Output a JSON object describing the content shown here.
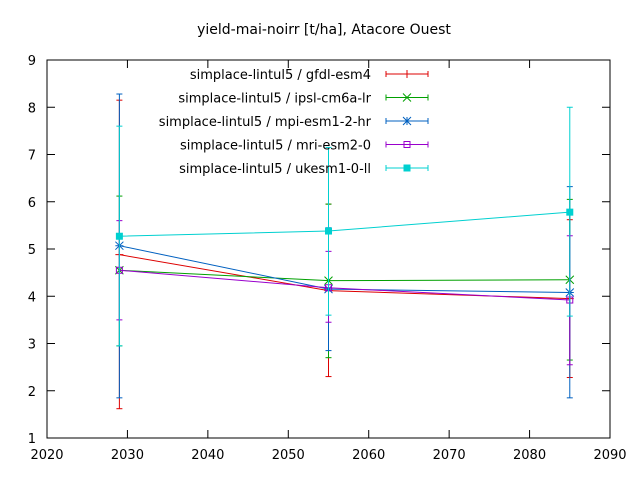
{
  "chart_data": {
    "type": "line",
    "title": "yield-mai-noirr [t/ha], Atacore Ouest",
    "xlabel": "",
    "ylabel": "",
    "xlim": [
      2020,
      2090
    ],
    "ylim": [
      1,
      9
    ],
    "xticks": [
      2020,
      2030,
      2040,
      2050,
      2060,
      2070,
      2080,
      2090
    ],
    "yticks": [
      1,
      2,
      3,
      4,
      5,
      6,
      7,
      8,
      9
    ],
    "grid": false,
    "legend_position": "top-right",
    "x": [
      2029,
      2055,
      2085
    ],
    "series": [
      {
        "name": "simplace-lintul5 / gfdl-esm4",
        "color": "#dd0000",
        "marker": "plus",
        "values": [
          4.88,
          4.12,
          3.95
        ],
        "err_low": [
          1.62,
          2.3,
          2.28
        ],
        "err_high": [
          8.15,
          5.95,
          5.62
        ]
      },
      {
        "name": "simplace-lintul5 / ipsl-cm6a-lr",
        "color": "#00a000",
        "marker": "cross",
        "values": [
          4.55,
          4.33,
          4.35
        ],
        "err_low": [
          2.95,
          2.7,
          2.65
        ],
        "err_high": [
          6.12,
          5.95,
          6.05
        ]
      },
      {
        "name": "simplace-lintul5 / mpi-esm1-2-hr",
        "color": "#0060c0",
        "marker": "star",
        "values": [
          5.07,
          4.15,
          4.08
        ],
        "err_low": [
          1.85,
          2.85,
          1.85
        ],
        "err_high": [
          8.28,
          5.45,
          6.32
        ]
      },
      {
        "name": "simplace-lintul5 / mri-esm2-0",
        "color": "#9900cc",
        "marker": "square-open",
        "values": [
          4.55,
          4.18,
          3.92
        ],
        "err_low": [
          3.5,
          3.45,
          2.55
        ],
        "err_high": [
          5.6,
          4.95,
          5.28
        ]
      },
      {
        "name": "simplace-lintul5 / ukesm1-0-ll",
        "color": "#00d0d0",
        "marker": "square-filled",
        "values": [
          5.27,
          5.38,
          5.78
        ],
        "err_low": [
          2.95,
          3.6,
          3.58
        ],
        "err_high": [
          7.6,
          7.15,
          8.0
        ]
      }
    ]
  }
}
